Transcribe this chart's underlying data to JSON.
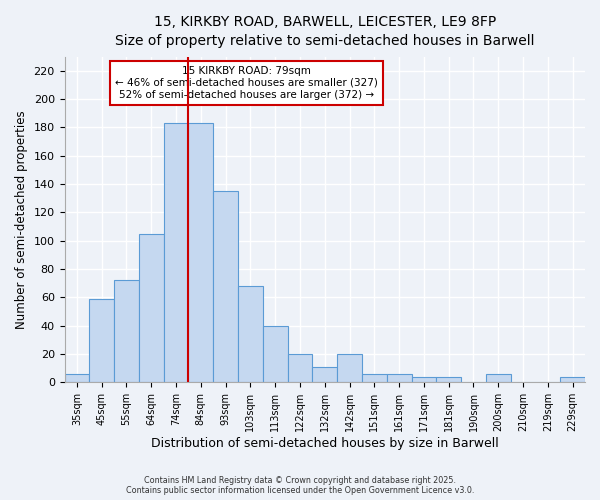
{
  "title": "15, KIRKBY ROAD, BARWELL, LEICESTER, LE9 8FP",
  "subtitle": "Size of property relative to semi-detached houses in Barwell",
  "xlabel": "Distribution of semi-detached houses by size in Barwell",
  "ylabel": "Number of semi-detached properties",
  "bar_labels": [
    "35sqm",
    "45sqm",
    "55sqm",
    "64sqm",
    "74sqm",
    "84sqm",
    "93sqm",
    "103sqm",
    "113sqm",
    "122sqm",
    "132sqm",
    "142sqm",
    "151sqm",
    "161sqm",
    "171sqm",
    "181sqm",
    "190sqm",
    "200sqm",
    "210sqm",
    "219sqm",
    "229sqm"
  ],
  "bar_values": [
    6,
    59,
    72,
    105,
    183,
    183,
    135,
    68,
    40,
    20,
    11,
    20,
    6,
    6,
    4,
    4,
    0,
    6,
    0,
    0,
    4
  ],
  "bar_color": "#c5d8f0",
  "bar_edge_color": "#5b9bd5",
  "vline_x": 4.5,
  "vline_color": "#cc0000",
  "annotation_title": "15 KIRKBY ROAD: 79sqm",
  "annotation_line2": "← 46% of semi-detached houses are smaller (327)",
  "annotation_line3": "52% of semi-detached houses are larger (372) →",
  "annotation_box_color": "#cc0000",
  "ylim": [
    0,
    230
  ],
  "yticks": [
    0,
    20,
    40,
    60,
    80,
    100,
    120,
    140,
    160,
    180,
    200,
    220
  ],
  "background_color": "#eef2f8",
  "grid_color": "#ffffff",
  "footer_line1": "Contains HM Land Registry data © Crown copyright and database right 2025.",
  "footer_line2": "Contains public sector information licensed under the Open Government Licence v3.0."
}
